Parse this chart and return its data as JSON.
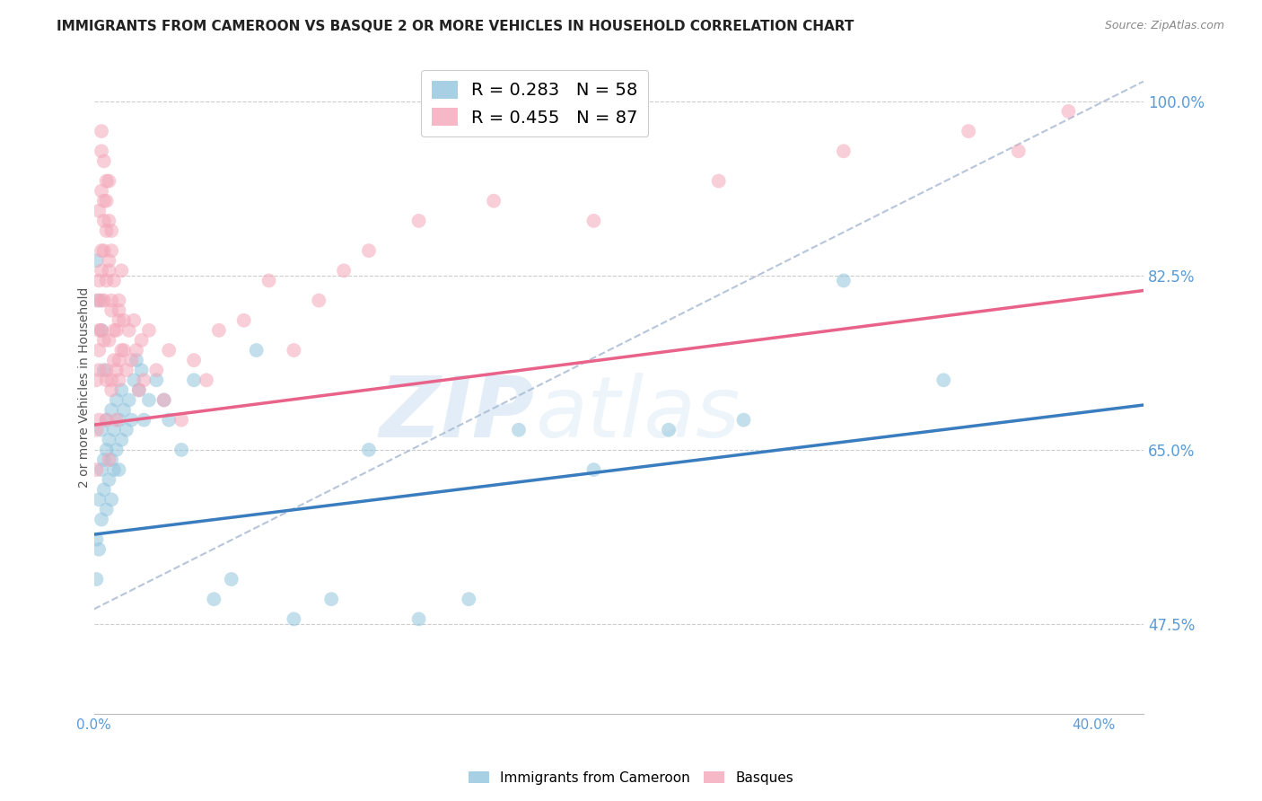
{
  "title": "IMMIGRANTS FROM CAMEROON VS BASQUE 2 OR MORE VEHICLES IN HOUSEHOLD CORRELATION CHART",
  "source": "Source: ZipAtlas.com",
  "ylabel": "2 or more Vehicles in Household",
  "r_cameroon": 0.283,
  "n_cameroon": 58,
  "r_basque": 0.455,
  "n_basque": 87,
  "color_cameroon": "#92c5de",
  "color_basque": "#f4a6b8",
  "line_color_cameroon": "#3a7dbf",
  "line_color_basque": "#e8628a",
  "xlim": [
    0.0,
    0.42
  ],
  "ylim": [
    0.385,
    1.04
  ],
  "right_ytick_vals": [
    0.475,
    0.65,
    0.825,
    1.0
  ],
  "right_ytick_labels": [
    "47.5%",
    "65.0%",
    "82.5%",
    "100.0%"
  ],
  "xtick_vals": [
    0.0,
    0.4
  ],
  "xtick_labels": [
    "0.0%",
    "40.0%"
  ],
  "cam_line_x0": 0.0,
  "cam_line_y0": 0.565,
  "cam_line_x1": 0.42,
  "cam_line_y1": 0.695,
  "bas_line_x0": 0.0,
  "bas_line_y0": 0.675,
  "bas_line_x1": 0.42,
  "bas_line_y1": 0.81,
  "dash_line_x0": 0.0,
  "dash_line_y0": 0.49,
  "dash_line_x1": 0.42,
  "dash_line_y1": 1.02,
  "legend_cameroon": "Immigrants from Cameroon",
  "legend_basque": "Basques",
  "watermark_zip": "ZIP",
  "watermark_atlas": "atlas",
  "scatter_cameroon_x": [
    0.001,
    0.001,
    0.002,
    0.002,
    0.003,
    0.003,
    0.003,
    0.004,
    0.004,
    0.005,
    0.005,
    0.005,
    0.006,
    0.006,
    0.007,
    0.007,
    0.007,
    0.008,
    0.008,
    0.009,
    0.009,
    0.01,
    0.01,
    0.011,
    0.011,
    0.012,
    0.013,
    0.014,
    0.015,
    0.016,
    0.017,
    0.018,
    0.019,
    0.02,
    0.022,
    0.025,
    0.028,
    0.03,
    0.035,
    0.04,
    0.048,
    0.055,
    0.065,
    0.08,
    0.095,
    0.11,
    0.13,
    0.15,
    0.17,
    0.2,
    0.23,
    0.26,
    0.3,
    0.34,
    0.001,
    0.002,
    0.003,
    0.004
  ],
  "scatter_cameroon_y": [
    0.56,
    0.52,
    0.6,
    0.55,
    0.58,
    0.63,
    0.67,
    0.61,
    0.64,
    0.59,
    0.65,
    0.68,
    0.62,
    0.66,
    0.6,
    0.64,
    0.69,
    0.63,
    0.67,
    0.65,
    0.7,
    0.63,
    0.68,
    0.66,
    0.71,
    0.69,
    0.67,
    0.7,
    0.68,
    0.72,
    0.74,
    0.71,
    0.73,
    0.68,
    0.7,
    0.72,
    0.7,
    0.68,
    0.65,
    0.72,
    0.5,
    0.52,
    0.75,
    0.48,
    0.5,
    0.65,
    0.48,
    0.5,
    0.67,
    0.63,
    0.67,
    0.68,
    0.82,
    0.72,
    0.84,
    0.8,
    0.77,
    0.73
  ],
  "scatter_basque_x": [
    0.001,
    0.001,
    0.001,
    0.001,
    0.002,
    0.002,
    0.002,
    0.003,
    0.003,
    0.003,
    0.003,
    0.004,
    0.004,
    0.004,
    0.005,
    0.005,
    0.005,
    0.006,
    0.006,
    0.006,
    0.007,
    0.007,
    0.007,
    0.008,
    0.008,
    0.009,
    0.009,
    0.01,
    0.01,
    0.011,
    0.011,
    0.012,
    0.013,
    0.014,
    0.015,
    0.016,
    0.017,
    0.018,
    0.019,
    0.02,
    0.022,
    0.025,
    0.028,
    0.03,
    0.035,
    0.04,
    0.045,
    0.05,
    0.06,
    0.07,
    0.08,
    0.09,
    0.1,
    0.11,
    0.13,
    0.16,
    0.2,
    0.25,
    0.3,
    0.35,
    0.37,
    0.39,
    0.01,
    0.01,
    0.003,
    0.002,
    0.002,
    0.003,
    0.004,
    0.005,
    0.005,
    0.006,
    0.007,
    0.008,
    0.009,
    0.01,
    0.012,
    0.002,
    0.003,
    0.004,
    0.004,
    0.005,
    0.005,
    0.006,
    0.006,
    0.007,
    0.007
  ],
  "scatter_basque_y": [
    0.72,
    0.67,
    0.8,
    0.63,
    0.75,
    0.68,
    0.82,
    0.77,
    0.85,
    0.91,
    0.97,
    0.8,
    0.88,
    0.94,
    0.73,
    0.82,
    0.9,
    0.76,
    0.84,
    0.92,
    0.71,
    0.79,
    0.87,
    0.74,
    0.82,
    0.68,
    0.77,
    0.72,
    0.8,
    0.75,
    0.83,
    0.78,
    0.73,
    0.77,
    0.74,
    0.78,
    0.75,
    0.71,
    0.76,
    0.72,
    0.77,
    0.73,
    0.7,
    0.75,
    0.68,
    0.74,
    0.72,
    0.77,
    0.78,
    0.82,
    0.75,
    0.8,
    0.83,
    0.85,
    0.88,
    0.9,
    0.88,
    0.92,
    0.95,
    0.97,
    0.95,
    0.99,
    0.78,
    0.74,
    0.83,
    0.77,
    0.73,
    0.8,
    0.76,
    0.72,
    0.68,
    0.64,
    0.72,
    0.77,
    0.73,
    0.79,
    0.75,
    0.89,
    0.95,
    0.85,
    0.9,
    0.87,
    0.92,
    0.83,
    0.88,
    0.8,
    0.85
  ]
}
